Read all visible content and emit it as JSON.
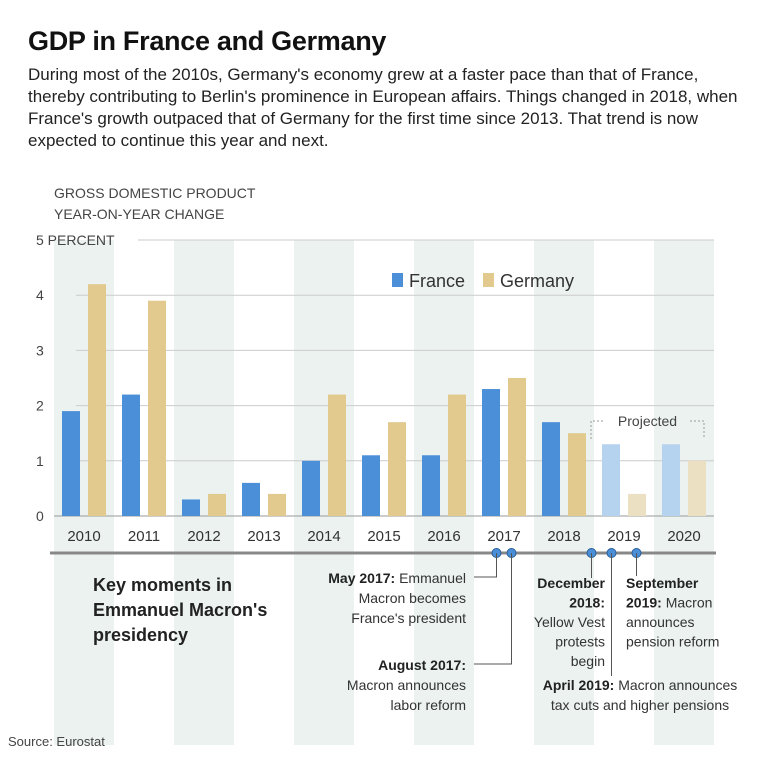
{
  "title": "GDP in France and Germany",
  "subtitle": "During most of the 2010s, Germany's economy grew at a faster pace than that of France, thereby contributing to Berlin's prominence in European affairs. Things changed in 2018, when France's growth outpaced that of Germany for the first time since 2013. That trend is now expected to continue this year and next.",
  "source": "Source: Eurostat",
  "colors": {
    "france": "#4a8fd8",
    "germany": "#e2c98e",
    "france_projected": "#b5d2ee",
    "germany_projected": "#ece0c2",
    "grid": "#cccccc",
    "band": "#ebf2f0",
    "timeline": "#888888",
    "marker": "#4a8fd8"
  },
  "chart_data": {
    "type": "bar",
    "ylabel_line1": "GROSS DOMESTIC PRODUCT",
    "ylabel_line2": "YEAR-ON-YEAR CHANGE",
    "ylim": [
      0,
      5
    ],
    "yticks": [
      {
        "value": 0,
        "label": "0"
      },
      {
        "value": 1,
        "label": "1"
      },
      {
        "value": 2,
        "label": "2"
      },
      {
        "value": 3,
        "label": "3"
      },
      {
        "value": 4,
        "label": "4"
      },
      {
        "value": 5,
        "label": "5 PERCENT"
      }
    ],
    "categories": [
      "2010",
      "2011",
      "2012",
      "2013",
      "2014",
      "2015",
      "2016",
      "2017",
      "2018",
      "2019",
      "2020"
    ],
    "series": [
      {
        "name": "France",
        "values": [
          1.9,
          2.2,
          0.3,
          0.6,
          1.0,
          1.1,
          1.1,
          2.3,
          1.7,
          1.3,
          1.3
        ]
      },
      {
        "name": "Germany",
        "values": [
          4.2,
          3.9,
          0.4,
          0.4,
          2.2,
          1.7,
          2.2,
          2.5,
          1.5,
          0.4,
          1.0
        ]
      }
    ],
    "projected_categories": [
      "2019",
      "2020"
    ],
    "projected_label": "Projected",
    "legend_position": "top-right",
    "grid": true
  },
  "timeline": {
    "heading": [
      "Key moments in",
      "Emmanuel Macron's",
      "presidency"
    ],
    "events": [
      {
        "date": "2017-05",
        "lines": [
          {
            "bold": "May 2017:",
            "text": " Emmanuel"
          },
          {
            "bold": "",
            "text": "Macron becomes"
          },
          {
            "bold": "",
            "text": "France's president"
          }
        ]
      },
      {
        "date": "2017-08",
        "lines": [
          {
            "bold": "August 2017:",
            "text": ""
          },
          {
            "bold": "",
            "text": "Macron announces"
          },
          {
            "bold": "",
            "text": "labor reform"
          }
        ]
      },
      {
        "date": "2018-12",
        "lines": [
          {
            "bold": "December",
            "text": ""
          },
          {
            "bold": "2018:",
            "text": ""
          },
          {
            "bold": "",
            "text": "Yellow Vest"
          },
          {
            "bold": "",
            "text": "protests"
          },
          {
            "bold": "",
            "text": "begin"
          }
        ]
      },
      {
        "date": "2019-04",
        "lines": [
          {
            "bold": "April 2019:",
            "text": " Macron announces"
          },
          {
            "bold": "",
            "text": "tax cuts and higher pensions"
          }
        ]
      },
      {
        "date": "2019-09",
        "lines": [
          {
            "bold": "September",
            "text": ""
          },
          {
            "bold": "2019:",
            "text": " Macron"
          },
          {
            "bold": "",
            "text": "announces"
          },
          {
            "bold": "",
            "text": "pension reform"
          }
        ]
      }
    ]
  }
}
